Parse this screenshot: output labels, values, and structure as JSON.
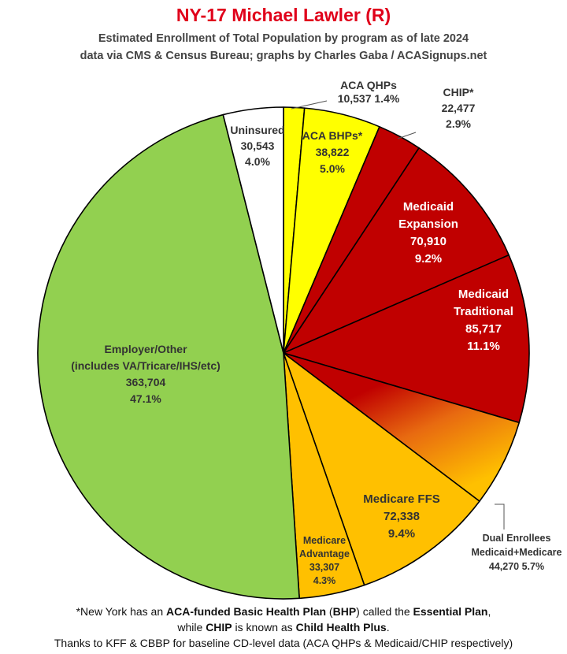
{
  "header": {
    "title": "NY-17 Michael Lawler (R)",
    "subtitle_line1": "Estimated Enrollment of Total Population by program as of late 2024",
    "subtitle_line2": "data via CMS & Census Bureau; graphs by Charles Gaba / ACASignups.net"
  },
  "footnote": {
    "line1": [
      "*New York has an ",
      "ACA-funded Basic Health Plan",
      " (",
      "BHP",
      ") called the ",
      "Essential Plan",
      ","
    ],
    "line2": [
      "while ",
      "CHIP",
      " is known as ",
      "Child Health Plus",
      "."
    ],
    "line3": "Thanks to KFF & CBBP for baseline CD-level data (ACA QHPs & Medicaid/CHIP respectively)"
  },
  "chart_data": {
    "type": "pie",
    "title": "NY-17 Michael Lawler (R)",
    "slices": [
      {
        "label": "ACA QHPs",
        "value": 10537,
        "pct": "1.4%",
        "color": "#ffff00",
        "lines": [
          "ACA QHPs",
          "10,537 1.4%"
        ]
      },
      {
        "label": "ACA BHPs*",
        "value": 38822,
        "pct": "5.0%",
        "color": "#ffff00",
        "lines": [
          "ACA BHPs*",
          "38,822",
          "5.0%"
        ]
      },
      {
        "label": "CHIP*",
        "value": 22477,
        "pct": "2.9%",
        "color": "#c00000",
        "lines": [
          "CHIP*",
          "22,477",
          "2.9%"
        ]
      },
      {
        "label": "Medicaid Expansion",
        "value": 70910,
        "pct": "9.2%",
        "color": "#c00000",
        "lines": [
          "Medicaid",
          "Expansion",
          "70,910",
          "9.2%"
        ]
      },
      {
        "label": "Medicaid Traditional",
        "value": 85717,
        "pct": "11.1%",
        "color": "#c00000",
        "lines": [
          "Medicaid",
          "Traditional",
          "85,717",
          "11.1%"
        ]
      },
      {
        "label": "Dual Enrollees Medicaid+Medicare",
        "value": 44270,
        "pct": "5.7%",
        "color": "#e86a10",
        "gradient": true,
        "lines": [
          "Dual Enrollees",
          "Medicaid+Medicare",
          "44,270 5.7%"
        ]
      },
      {
        "label": "Medicare FFS",
        "value": 72338,
        "pct": "9.4%",
        "color": "#ffc000",
        "lines": [
          "Medicare FFS",
          "72,338",
          "9.4%"
        ]
      },
      {
        "label": "Medicare Advantage",
        "value": 33307,
        "pct": "4.3%",
        "color": "#ffc000",
        "lines": [
          "Medicare",
          "Advantage",
          "33,307",
          "4.3%"
        ]
      },
      {
        "label": "Employer/Other (includes VA/Tricare/IHS/etc)",
        "value": 363704,
        "pct": "47.1%",
        "color": "#92d050",
        "lines": [
          "Employer/Other",
          "(includes VA/Tricare/IHS/etc)",
          "363,704",
          "47.1%"
        ]
      },
      {
        "label": "Uninsured",
        "value": 30543,
        "pct": "4.0%",
        "color": "#ffffff",
        "lines": [
          "Uninsured",
          "30,543",
          "4.0%"
        ]
      }
    ]
  }
}
